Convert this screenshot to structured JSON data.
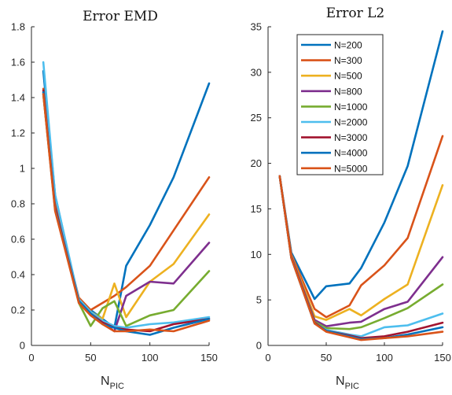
{
  "chart_data": [
    {
      "type": "line",
      "title": "Error  EMD",
      "xlabel": "N",
      "xlabel_sub": "PIC",
      "ylabel": "",
      "xlim": [
        0,
        150
      ],
      "ylim": [
        0,
        1.8
      ],
      "xticks": [
        0,
        50,
        100,
        150
      ],
      "yticks": [
        0,
        0.2,
        0.4,
        0.6,
        0.8,
        1,
        1.2,
        1.4,
        1.6,
        1.8
      ],
      "ytick_labels": [
        "0",
        "0.2",
        "0.4",
        "0.6",
        "0.8",
        "1",
        "1.2",
        "1.4",
        "1.6",
        "1.8"
      ],
      "x": [
        10,
        20,
        40,
        50,
        60,
        70,
        80,
        100,
        120,
        150
      ],
      "series": [
        {
          "name": "N=200",
          "color": "#0072BD",
          "values": [
            1.55,
            0.85,
            0.25,
            0.2,
            0.15,
            0.1,
            0.45,
            0.68,
            0.95,
            1.48
          ]
        },
        {
          "name": "N=300",
          "color": "#D95319",
          "values": [
            1.45,
            0.8,
            0.27,
            0.2,
            0.24,
            0.28,
            0.33,
            0.45,
            0.65,
            0.95
          ]
        },
        {
          "name": "N=500",
          "color": "#EDB120",
          "values": [
            1.42,
            0.78,
            0.26,
            0.19,
            0.15,
            0.35,
            0.16,
            0.36,
            0.46,
            0.74
          ]
        },
        {
          "name": "N=800",
          "color": "#7E2F8E",
          "values": [
            1.43,
            0.78,
            0.25,
            0.18,
            0.13,
            0.08,
            0.28,
            0.36,
            0.35,
            0.58
          ]
        },
        {
          "name": "N=1000",
          "color": "#77AC30",
          "values": [
            1.42,
            0.77,
            0.24,
            0.11,
            0.21,
            0.25,
            0.11,
            0.17,
            0.2,
            0.42
          ]
        },
        {
          "name": "N=2000",
          "color": "#4DBEEE",
          "values": [
            1.6,
            0.85,
            0.26,
            0.19,
            0.14,
            0.11,
            0.1,
            0.12,
            0.13,
            0.16
          ]
        },
        {
          "name": "N=3000",
          "color": "#A2142F",
          "values": [
            1.44,
            0.78,
            0.25,
            0.18,
            0.13,
            0.1,
            0.09,
            0.08,
            0.12,
            0.15
          ]
        },
        {
          "name": "N=4000",
          "color": "#0072BD",
          "values": [
            1.43,
            0.77,
            0.25,
            0.18,
            0.12,
            0.1,
            0.08,
            0.06,
            0.1,
            0.15
          ]
        },
        {
          "name": "N=5000",
          "color": "#D95319",
          "values": [
            1.42,
            0.76,
            0.24,
            0.17,
            0.12,
            0.08,
            0.08,
            0.09,
            0.08,
            0.14
          ]
        }
      ]
    },
    {
      "type": "line",
      "title": "Error  L2",
      "xlabel": "N",
      "xlabel_sub": "PIC",
      "ylabel": "",
      "xlim": [
        0,
        150
      ],
      "ylim": [
        0,
        35
      ],
      "xticks": [
        0,
        50,
        100,
        150
      ],
      "yticks": [
        0,
        5,
        10,
        15,
        20,
        25,
        30,
        35
      ],
      "ytick_labels": [
        "0",
        "5",
        "10",
        "15",
        "20",
        "25",
        "30",
        "35"
      ],
      "legend": "top-right",
      "x": [
        10,
        20,
        40,
        50,
        70,
        80,
        100,
        120,
        150
      ],
      "series": [
        {
          "name": "N=200",
          "color": "#0072BD",
          "values": [
            18.6,
            10.2,
            5.1,
            6.5,
            6.8,
            8.5,
            13.5,
            19.7,
            34.5
          ]
        },
        {
          "name": "N=300",
          "color": "#D95319",
          "values": [
            18.6,
            10.0,
            4.0,
            3.1,
            4.4,
            6.6,
            8.8,
            11.8,
            23.0
          ]
        },
        {
          "name": "N=500",
          "color": "#EDB120",
          "values": [
            18.6,
            9.9,
            3.2,
            2.8,
            4.0,
            3.3,
            5.1,
            6.7,
            17.6
          ]
        },
        {
          "name": "N=800",
          "color": "#7E2F8E",
          "values": [
            18.6,
            9.8,
            2.8,
            2.1,
            2.5,
            2.6,
            4.0,
            4.8,
            9.7
          ]
        },
        {
          "name": "N=1000",
          "color": "#77AC30",
          "values": [
            18.6,
            9.7,
            2.6,
            1.9,
            1.8,
            2.0,
            3.0,
            4.1,
            6.7
          ]
        },
        {
          "name": "N=2000",
          "color": "#4DBEEE",
          "values": [
            18.6,
            9.7,
            2.5,
            1.7,
            1.2,
            1.0,
            2.0,
            2.2,
            3.5
          ]
        },
        {
          "name": "N=3000",
          "color": "#A2142F",
          "values": [
            18.6,
            9.7,
            2.5,
            1.6,
            1.1,
            0.8,
            1.0,
            1.5,
            2.5
          ]
        },
        {
          "name": "N=4000",
          "color": "#0072BD",
          "values": [
            18.6,
            9.6,
            2.4,
            1.6,
            1.0,
            0.7,
            0.8,
            1.2,
            2.0
          ]
        },
        {
          "name": "N=5000",
          "color": "#D95319",
          "values": [
            18.6,
            9.6,
            2.4,
            1.5,
            0.9,
            0.6,
            0.8,
            1.0,
            1.5
          ]
        }
      ]
    }
  ]
}
